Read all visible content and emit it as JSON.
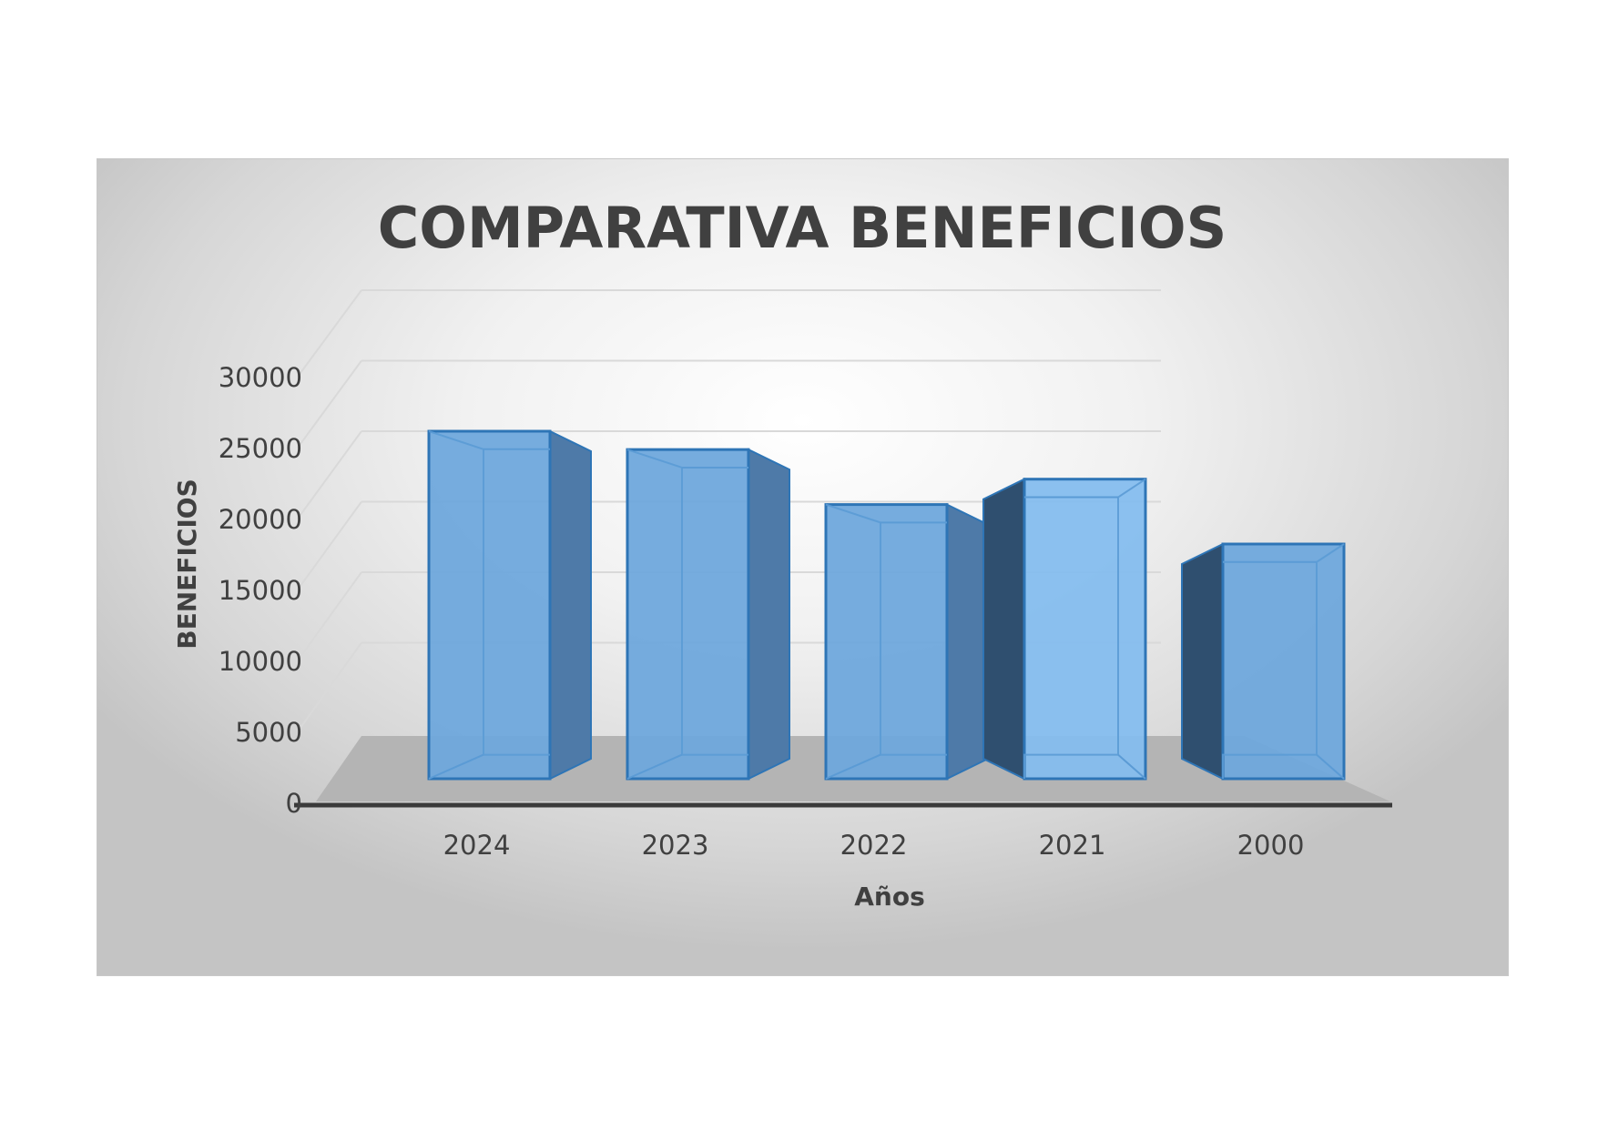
{
  "chart_data": {
    "type": "bar",
    "title": "COMPARATIVA BENEFICIOS",
    "xlabel": "Años",
    "ylabel": "BENEFICIOS",
    "categories": [
      "2024",
      "2023",
      "2022",
      "2021",
      "2000"
    ],
    "values": [
      24000,
      22700,
      18800,
      20600,
      16000
    ],
    "ylim": [
      0,
      30000
    ],
    "yticks": [
      "0",
      "5000",
      "10000",
      "15000",
      "20000",
      "25000",
      "30000"
    ],
    "grid": true,
    "legend": "none",
    "style": "3d-column",
    "colors": {
      "bar_front": "#6fa8dc",
      "bar_edge": "#2e75b6",
      "bar_side_dark": "#2f4f6f",
      "floor": "#b4b4b4",
      "axis_line": "#3a3a3a",
      "text": "#404040"
    }
  }
}
